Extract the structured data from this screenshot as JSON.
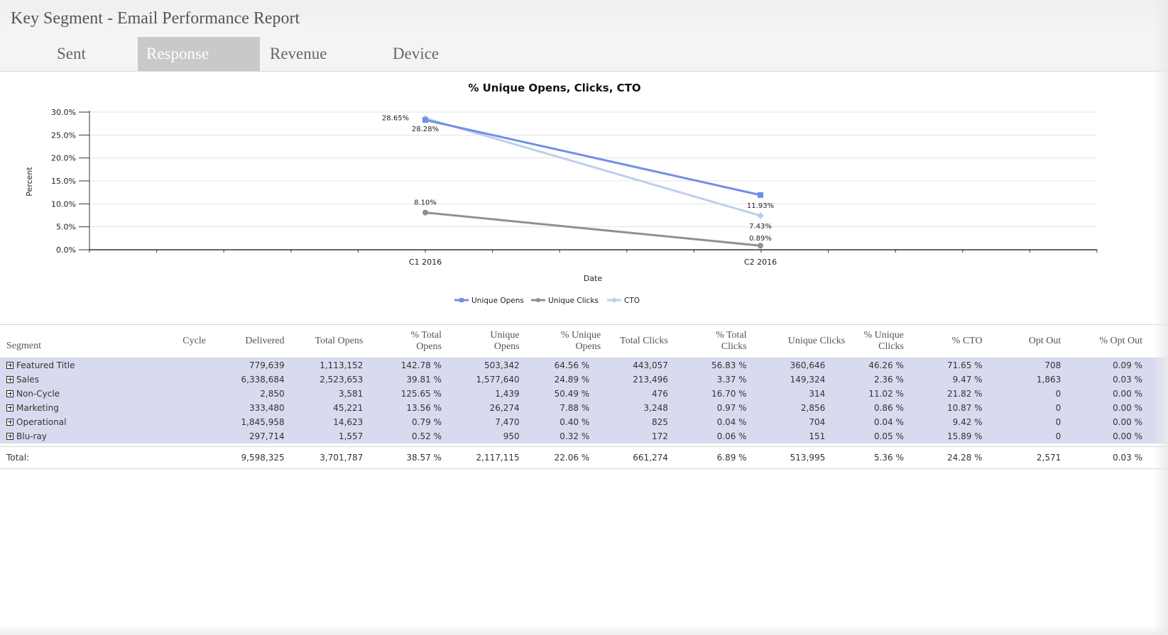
{
  "app": {
    "title": "Key Segment - Email Performance Report"
  },
  "tabs": [
    {
      "label": "Sent",
      "active": false
    },
    {
      "label": "Response",
      "active": true
    },
    {
      "label": "Revenue",
      "active": false
    },
    {
      "label": "Device",
      "active": false
    }
  ],
  "chart_data": {
    "type": "line",
    "title": "% Unique Opens, Clicks, CTO",
    "xlabel": "Date",
    "ylabel": "Percent",
    "categories": [
      "C1  2016",
      "C2  2016"
    ],
    "y_ticks": [
      "0.0%",
      "5.0%",
      "10.0%",
      "15.0%",
      "20.0%",
      "25.0%",
      "30.0%"
    ],
    "ylim": [
      0,
      30
    ],
    "grid": true,
    "legend_position": "bottom",
    "series": [
      {
        "name": "Unique Opens",
        "values": [
          28.28,
          11.93
        ],
        "labels": [
          "28.28%",
          "11.93%"
        ],
        "color": "#6f90e4",
        "marker": "square"
      },
      {
        "name": "Unique Clicks",
        "values": [
          8.1,
          0.89
        ],
        "labels": [
          "8.10%",
          "0.89%"
        ],
        "color": "#8f8f98",
        "marker": "circle"
      },
      {
        "name": "CTO",
        "values": [
          28.65,
          7.43
        ],
        "labels": [
          "28.65%",
          "7.43%"
        ],
        "color": "#bfcdf0",
        "marker": "diamond"
      }
    ]
  },
  "table": {
    "headers": [
      "Segment",
      "Cycle",
      "Delivered",
      "Total Opens",
      "% Total Opens",
      "Unique Opens",
      "% Unique Opens",
      "Total Clicks",
      "% Total Clicks",
      "Unique Clicks",
      "% Unique Clicks",
      "% CTO",
      "Opt Out",
      "% Opt Out"
    ],
    "rows": [
      {
        "segment": "Featured Title",
        "cycle": "",
        "delivered": "779,639",
        "total_opens": "1,113,152",
        "pct_total_opens": "142.78 %",
        "unique_opens": "503,342",
        "pct_unique_opens": "64.56 %",
        "total_clicks": "443,057",
        "pct_total_clicks": "56.83 %",
        "unique_clicks": "360,646",
        "pct_unique_clicks": "46.26 %",
        "pct_cto": "71.65 %",
        "opt_out": "708",
        "pct_opt_out": "0.09 %"
      },
      {
        "segment": "Sales",
        "cycle": "",
        "delivered": "6,338,684",
        "total_opens": "2,523,653",
        "pct_total_opens": "39.81 %",
        "unique_opens": "1,577,640",
        "pct_unique_opens": "24.89 %",
        "total_clicks": "213,496",
        "pct_total_clicks": "3.37 %",
        "unique_clicks": "149,324",
        "pct_unique_clicks": "2.36 %",
        "pct_cto": "9.47 %",
        "opt_out": "1,863",
        "pct_opt_out": "0.03 %"
      },
      {
        "segment": "Non-Cycle",
        "cycle": "",
        "delivered": "2,850",
        "total_opens": "3,581",
        "pct_total_opens": "125.65 %",
        "unique_opens": "1,439",
        "pct_unique_opens": "50.49 %",
        "total_clicks": "476",
        "pct_total_clicks": "16.70 %",
        "unique_clicks": "314",
        "pct_unique_clicks": "11.02 %",
        "pct_cto": "21.82 %",
        "opt_out": "0",
        "pct_opt_out": "0.00 %"
      },
      {
        "segment": "Marketing",
        "cycle": "",
        "delivered": "333,480",
        "total_opens": "45,221",
        "pct_total_opens": "13.56 %",
        "unique_opens": "26,274",
        "pct_unique_opens": "7.88 %",
        "total_clicks": "3,248",
        "pct_total_clicks": "0.97 %",
        "unique_clicks": "2,856",
        "pct_unique_clicks": "0.86 %",
        "pct_cto": "10.87 %",
        "opt_out": "0",
        "pct_opt_out": "0.00 %"
      },
      {
        "segment": "Operational",
        "cycle": "",
        "delivered": "1,845,958",
        "total_opens": "14,623",
        "pct_total_opens": "0.79 %",
        "unique_opens": "7,470",
        "pct_unique_opens": "0.40 %",
        "total_clicks": "825",
        "pct_total_clicks": "0.04 %",
        "unique_clicks": "704",
        "pct_unique_clicks": "0.04 %",
        "pct_cto": "9.42 %",
        "opt_out": "0",
        "pct_opt_out": "0.00 %"
      },
      {
        "segment": "Blu-ray",
        "cycle": "",
        "delivered": "297,714",
        "total_opens": "1,557",
        "pct_total_opens": "0.52 %",
        "unique_opens": "950",
        "pct_unique_opens": "0.32 %",
        "total_clicks": "172",
        "pct_total_clicks": "0.06 %",
        "unique_clicks": "151",
        "pct_unique_clicks": "0.05 %",
        "pct_cto": "15.89 %",
        "opt_out": "0",
        "pct_opt_out": "0.00 %"
      }
    ],
    "total": {
      "label": "Total:",
      "cycle": "",
      "delivered": "9,598,325",
      "total_opens": "3,701,787",
      "pct_total_opens": "38.57 %",
      "unique_opens": "2,117,115",
      "pct_unique_opens": "22.06 %",
      "total_clicks": "661,274",
      "pct_total_clicks": "6.89 %",
      "unique_clicks": "513,995",
      "pct_unique_clicks": "5.36 %",
      "pct_cto": "24.28 %",
      "opt_out": "2,571",
      "pct_opt_out": "0.03 %"
    }
  }
}
